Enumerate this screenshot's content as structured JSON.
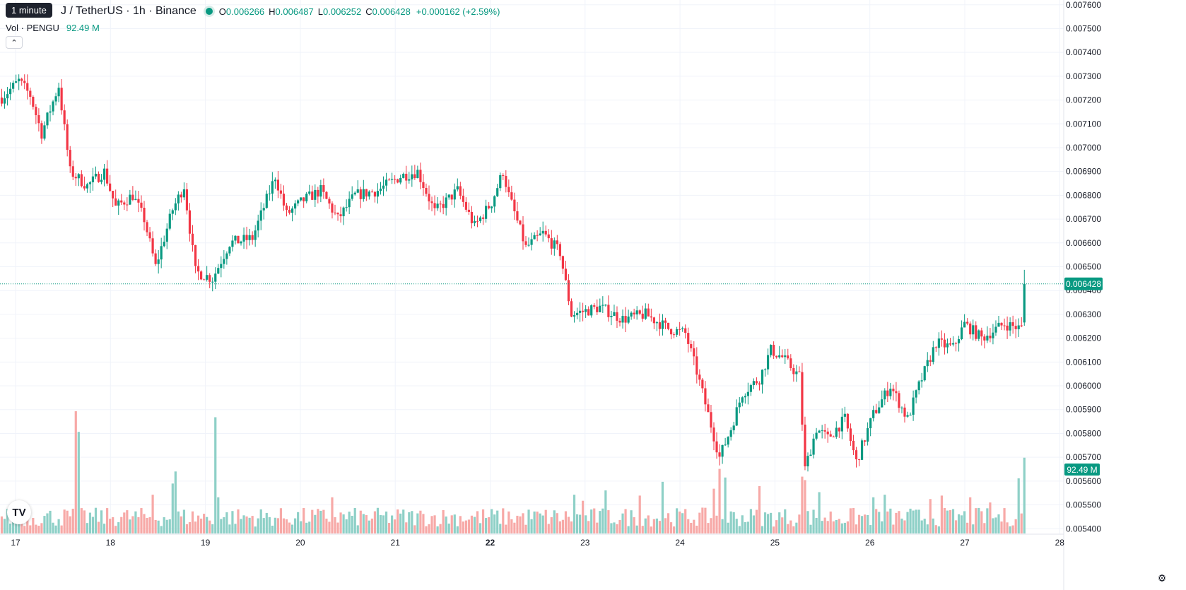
{
  "header": {
    "tooltip": "1 minute",
    "symbol": "J / TetherUS · 1h · Binance",
    "ohlc": {
      "o_label": "O",
      "o_value": "0.006266",
      "h_label": "H",
      "h_value": "0.006487",
      "l_label": "L",
      "l_value": "0.006252",
      "c_label": "C",
      "c_value": "0.006428",
      "change": "+0.000162 (+2.59%)"
    }
  },
  "volume_legend": {
    "label": "Vol · PENGU",
    "value": "92.49 M"
  },
  "colors": {
    "up": "#089981",
    "down": "#f23645",
    "vol_up": "#8ed0c7",
    "vol_down": "#f7a9a7"
  },
  "icons": {
    "collapse": "chevron-up-icon",
    "logo": "tradingview-logo",
    "settings": "gear-icon"
  },
  "chart_data": {
    "type": "candlestick",
    "interval": "1h",
    "y_ticks": [
      "0.007600",
      "0.007500",
      "0.007400",
      "0.007300",
      "0.007200",
      "0.007100",
      "0.007000",
      "0.006900",
      "0.006800",
      "0.006700",
      "0.006600",
      "0.006500",
      "0.006400",
      "0.006300",
      "0.006200",
      "0.006100",
      "0.006000",
      "0.005900",
      "0.005800",
      "0.005700",
      "0.005600",
      "0.005500",
      "0.005400"
    ],
    "ylim": [
      0.00538,
      0.00762
    ],
    "x_labels": [
      "17",
      "18",
      "19",
      "20",
      "21",
      "22",
      "23",
      "24",
      "25",
      "26",
      "27",
      "28"
    ],
    "last_price_label": "0.006428",
    "last_price": 0.006428,
    "volume_label": "92.49 M",
    "grid": true,
    "anchors": [
      [
        0,
        0.00721
      ],
      [
        6,
        0.00728
      ],
      [
        10,
        0.00722
      ],
      [
        14,
        0.00706
      ],
      [
        20,
        0.00726
      ],
      [
        24,
        0.0069
      ],
      [
        30,
        0.00684
      ],
      [
        36,
        0.0069
      ],
      [
        40,
        0.00675
      ],
      [
        46,
        0.0068
      ],
      [
        50,
        0.0067
      ],
      [
        54,
        0.0065
      ],
      [
        60,
        0.00674
      ],
      [
        64,
        0.00684
      ],
      [
        68,
        0.00648
      ],
      [
        74,
        0.00645
      ],
      [
        80,
        0.0066
      ],
      [
        88,
        0.00662
      ],
      [
        96,
        0.00688
      ],
      [
        100,
        0.00672
      ],
      [
        106,
        0.00678
      ],
      [
        112,
        0.00682
      ],
      [
        118,
        0.0067
      ],
      [
        124,
        0.0068
      ],
      [
        132,
        0.00682
      ],
      [
        140,
        0.00688
      ],
      [
        146,
        0.0069
      ],
      [
        152,
        0.00673
      ],
      [
        160,
        0.00682
      ],
      [
        166,
        0.00667
      ],
      [
        172,
        0.00677
      ],
      [
        176,
        0.0069
      ],
      [
        178,
        0.0068
      ],
      [
        184,
        0.00658
      ],
      [
        190,
        0.00664
      ],
      [
        196,
        0.00656
      ],
      [
        200,
        0.0063
      ],
      [
        210,
        0.00633
      ],
      [
        218,
        0.00628
      ],
      [
        226,
        0.0063
      ],
      [
        234,
        0.00624
      ],
      [
        240,
        0.00622
      ],
      [
        244,
        0.00606
      ],
      [
        248,
        0.00588
      ],
      [
        252,
        0.0057
      ],
      [
        256,
        0.00582
      ],
      [
        260,
        0.00597
      ],
      [
        266,
        0.00603
      ],
      [
        270,
        0.00615
      ],
      [
        274,
        0.00612
      ],
      [
        280,
        0.00604
      ],
      [
        282,
        0.00565
      ],
      [
        286,
        0.00582
      ],
      [
        290,
        0.00578
      ],
      [
        296,
        0.00586
      ],
      [
        300,
        0.00568
      ],
      [
        306,
        0.00588
      ],
      [
        312,
        0.006
      ],
      [
        318,
        0.00586
      ],
      [
        322,
        0.006
      ],
      [
        328,
        0.00618
      ],
      [
        334,
        0.00616
      ],
      [
        338,
        0.00626
      ],
      [
        344,
        0.0062
      ],
      [
        352,
        0.00626
      ],
      [
        358,
        0.00624
      ],
      [
        359,
        0.00627
      ]
    ],
    "last_candle": {
      "o": 0.006266,
      "h": 0.006487,
      "l": 0.006252,
      "c": 0.006428
    },
    "volume_ylim": [
      0,
      160
    ],
    "volume_spikes": {
      "26": 142,
      "27": 118,
      "60": 58,
      "61": 72,
      "53": 45,
      "75": 135,
      "76": 42,
      "116": 42,
      "250": 52,
      "252": 75,
      "254": 65,
      "266": 55,
      "281": 66,
      "282": 62,
      "287": 48,
      "306": 42,
      "310": 45,
      "224": 44,
      "232": 60,
      "201": 45,
      "212": 50,
      "204": 38,
      "357": 64,
      "326": 40,
      "330": 44,
      "340": 42,
      "347": 36
    }
  }
}
